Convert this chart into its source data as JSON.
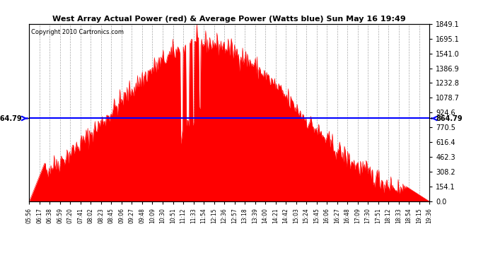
{
  "title": "West Array Actual Power (red) & Average Power (Watts blue) Sun May 16 19:49",
  "copyright": "Copyright 2010 Cartronics.com",
  "average_power": 864.79,
  "y_max": 1849.1,
  "y_min": 0.0,
  "y_ticks": [
    0.0,
    154.1,
    308.2,
    462.3,
    616.4,
    770.5,
    924.6,
    1078.7,
    1232.8,
    1386.9,
    1541.0,
    1695.1,
    1849.1
  ],
  "background_color": "#ffffff",
  "fill_color": "#ff0000",
  "line_color": "#0000ff",
  "grid_color": "#aaaaaa",
  "title_color": "#000000",
  "x_labels": [
    "05:56",
    "06:17",
    "06:38",
    "06:59",
    "07:20",
    "07:41",
    "08:02",
    "08:23",
    "08:45",
    "09:06",
    "09:27",
    "09:48",
    "10:09",
    "10:30",
    "10:51",
    "11:12",
    "11:33",
    "11:54",
    "12:15",
    "12:36",
    "12:57",
    "13:18",
    "13:39",
    "14:00",
    "14:21",
    "14:42",
    "15:03",
    "15:24",
    "15:45",
    "16:06",
    "16:27",
    "16:48",
    "17:09",
    "17:30",
    "17:51",
    "18:12",
    "18:33",
    "18:54",
    "19:15",
    "19:36"
  ],
  "num_points": 500,
  "figwidth": 6.9,
  "figheight": 3.75,
  "dpi": 100
}
